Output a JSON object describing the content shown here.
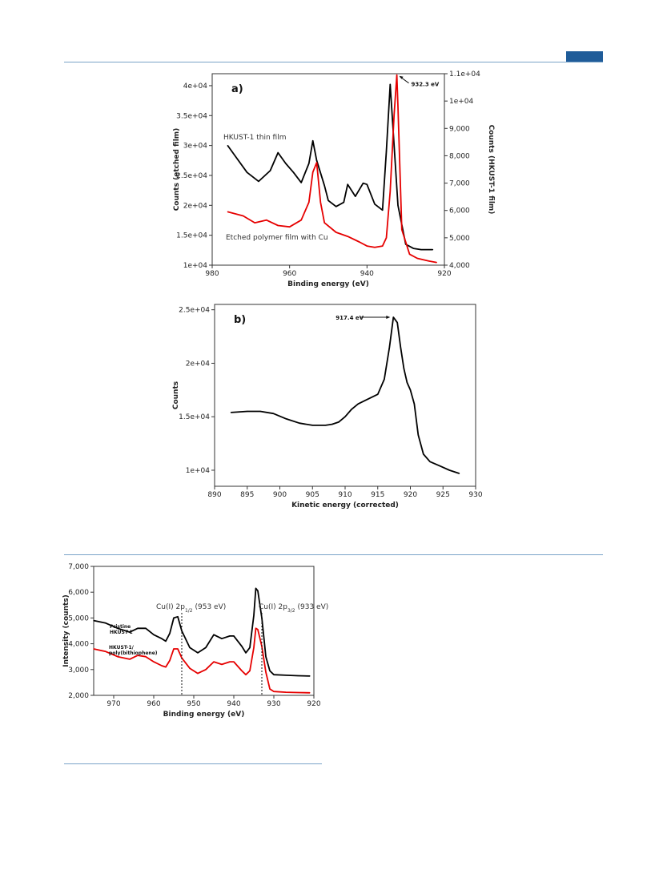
{
  "page": {
    "accent_color": "#1f5c99",
    "rule_color": "#7aa3c8"
  },
  "chart_data": [
    {
      "id": "a",
      "type": "line",
      "panel_label": "a)",
      "xlabel": "Binding energy (eV)",
      "ylabel": "Counts (etched film)",
      "y2label": "Counts (HKUST-1 film)",
      "xlim": [
        980,
        920
      ],
      "ylim": [
        10000,
        42000
      ],
      "y2lim": [
        4000,
        11000
      ],
      "x_ticks": [
        980,
        960,
        940,
        920
      ],
      "y_ticks": [
        10000,
        15000,
        20000,
        25000,
        30000,
        35000,
        40000
      ],
      "y_tick_labels": [
        "1e+04",
        "1.5e+04",
        "2e+04",
        "2.5e+04",
        "3e+04",
        "3.5e+04",
        "4e+04"
      ],
      "y2_ticks": [
        4000,
        5000,
        6000,
        7000,
        8000,
        9000,
        10000,
        11000
      ],
      "y2_tick_labels": [
        "4,000",
        "5,000",
        "6,000",
        "7,000",
        "8,000",
        "9,000",
        "1e+04",
        "1.1e+04"
      ],
      "annotations": [
        {
          "text": "932.3 eV",
          "x": 932.3
        },
        {
          "text": "HKUST-1 thin film"
        },
        {
          "text": "Etched polymer film with Cu"
        }
      ],
      "series": [
        {
          "color": "#000000",
          "axis": "left",
          "x": [
            976,
            974,
            971,
            968,
            965,
            963,
            961,
            959,
            957,
            955,
            954,
            953,
            951,
            950,
            948,
            946,
            945,
            943,
            941,
            940,
            938,
            936,
            935,
            934,
            932,
            930,
            928,
            926,
            923
          ],
          "y": [
            30000,
            28200,
            25500,
            24000,
            25800,
            28800,
            27000,
            25500,
            23800,
            27000,
            30800,
            27500,
            23300,
            20800,
            19800,
            20500,
            23500,
            21500,
            23700,
            23500,
            20200,
            19200,
            29000,
            40200,
            20000,
            13500,
            12800,
            12600,
            12600
          ]
        },
        {
          "color": "#e60000",
          "axis": "right",
          "x": [
            976,
            972,
            969,
            966,
            963,
            960,
            957,
            955,
            954,
            953,
            952,
            951,
            948,
            945,
            942,
            940,
            938,
            936,
            935,
            934,
            933,
            932.3,
            932,
            931,
            929,
            927,
            924,
            922
          ],
          "y": [
            5950,
            5800,
            5550,
            5650,
            5450,
            5400,
            5650,
            6300,
            7400,
            7750,
            6300,
            5550,
            5200,
            5050,
            4850,
            4700,
            4650,
            4700,
            5000,
            6700,
            9500,
            10950,
            9800,
            5300,
            4400,
            4250,
            4150,
            4100
          ]
        }
      ]
    },
    {
      "id": "b",
      "type": "line",
      "panel_label": "b)",
      "xlabel": "Kinetic energy (corrected)",
      "ylabel": "Counts",
      "xlim": [
        890,
        930
      ],
      "ylim": [
        8500,
        25500
      ],
      "x_ticks": [
        890,
        895,
        900,
        905,
        910,
        915,
        920,
        925,
        930
      ],
      "y_ticks": [
        10000,
        15000,
        20000,
        25000
      ],
      "y_tick_labels": [
        "1e+04",
        "1.5e+04",
        "2e+04",
        "2.5e+04"
      ],
      "annotations": [
        {
          "text": "917.4 eV",
          "x": 917.4
        }
      ],
      "series": [
        {
          "color": "#000000",
          "x": [
            892.5,
            895,
            897,
            899,
            901,
            903,
            905,
            907,
            908,
            909,
            910,
            911,
            912,
            913,
            914,
            915,
            916,
            916.8,
            917.4,
            918,
            918.5,
            919,
            919.5,
            920,
            920.6,
            921.2,
            922,
            923,
            924.5,
            926,
            927.5
          ],
          "y": [
            15400,
            15500,
            15500,
            15300,
            14800,
            14400,
            14200,
            14200,
            14300,
            14500,
            15000,
            15700,
            16200,
            16500,
            16800,
            17100,
            18500,
            21500,
            24300,
            23800,
            21500,
            19500,
            18200,
            17500,
            16200,
            13300,
            11500,
            10800,
            10400,
            10000,
            9700
          ]
        }
      ]
    },
    {
      "id": "c",
      "type": "line",
      "xlabel": "Binding energy (eV)",
      "ylabel": "Intensity (counts)",
      "xlim": [
        975,
        920
      ],
      "ylim": [
        2000,
        7000
      ],
      "x_ticks": [
        970,
        960,
        950,
        940,
        930,
        920
      ],
      "y_ticks": [
        2000,
        3000,
        4000,
        5000,
        6000,
        7000
      ],
      "y_tick_labels": [
        "2,000",
        "3,000",
        "4,000",
        "5,000",
        "6,000",
        "7,000"
      ],
      "annotations": [
        {
          "text": "Cu(I) 2p",
          "sub": "1/2",
          "suffix": " (953 eV)",
          "x": 953
        },
        {
          "text": "Cu(I) 2p",
          "sub": "3/2",
          "suffix": " (933 eV)",
          "x": 933
        }
      ],
      "series": [
        {
          "name": "Pristine HKUST-1",
          "name_lines": [
            "Pristine",
            "HKUST-1"
          ],
          "color": "#000000",
          "x": [
            975,
            972,
            969,
            966,
            964,
            962,
            960,
            958,
            957,
            956,
            955,
            954,
            953,
            951,
            949,
            947,
            945,
            943,
            941,
            940,
            938,
            937,
            936,
            935,
            934.5,
            934,
            933,
            932,
            931,
            930,
            927,
            924,
            921
          ],
          "y": [
            4900,
            4800,
            4600,
            4450,
            4600,
            4600,
            4350,
            4200,
            4100,
            4400,
            5000,
            5050,
            4500,
            3850,
            3650,
            3850,
            4350,
            4200,
            4300,
            4300,
            3900,
            3650,
            3850,
            5100,
            6150,
            6050,
            5000,
            3500,
            2950,
            2800,
            2780,
            2760,
            2750
          ]
        },
        {
          "name": "HKUST-1/ poly(bithiophene)",
          "name_lines": [
            "HKUST-1/",
            "poly(bithiophene)"
          ],
          "color": "#e60000",
          "x": [
            975,
            972,
            969,
            966,
            964,
            962,
            960,
            958,
            957,
            956,
            955,
            954,
            953,
            951,
            949,
            947,
            945,
            943,
            941,
            940,
            938,
            937,
            936,
            935,
            934.5,
            934,
            933,
            932,
            931,
            930,
            927,
            924,
            921
          ],
          "y": [
            3800,
            3700,
            3500,
            3400,
            3550,
            3500,
            3300,
            3150,
            3100,
            3350,
            3800,
            3800,
            3450,
            3050,
            2850,
            3000,
            3300,
            3200,
            3300,
            3300,
            2950,
            2800,
            2950,
            3850,
            4600,
            4550,
            3900,
            2900,
            2250,
            2150,
            2120,
            2110,
            2100
          ]
        }
      ]
    }
  ]
}
